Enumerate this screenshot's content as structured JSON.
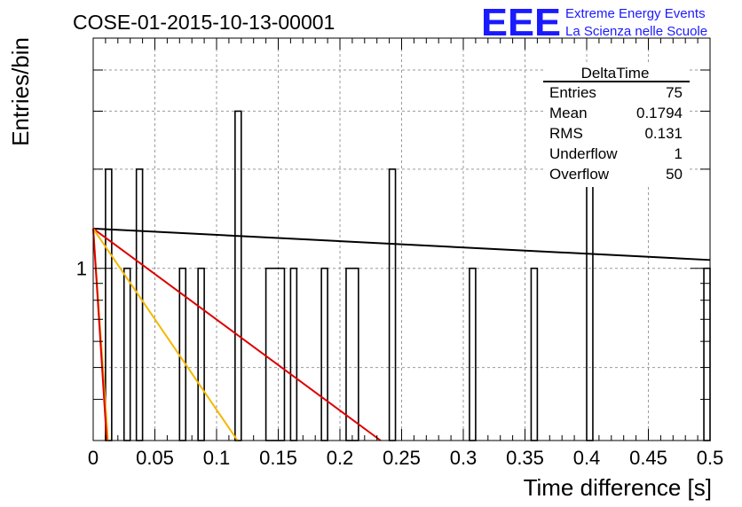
{
  "chart_data": {
    "type": "bar",
    "title": "COSE-01-2015-10-13-00001",
    "xlabel": "Time difference [s]",
    "ylabel": "Entries/bin",
    "xlim": [
      0,
      0.5
    ],
    "ylim": [
      0.3,
      5
    ],
    "y_scale": "log",
    "grid": true,
    "x_ticks": [
      "0",
      "0.05",
      "0.1",
      "0.15",
      "0.2",
      "0.25",
      "0.3",
      "0.35",
      "0.4",
      "0.45",
      "0.5"
    ],
    "x_tick_values": [
      0,
      0.05,
      0.1,
      0.15,
      0.2,
      0.25,
      0.3,
      0.35,
      0.4,
      0.45,
      0.5
    ],
    "y_ticks": [
      "1"
    ],
    "y_tick_values": [
      1
    ],
    "bins": [
      {
        "x0": 0.01,
        "x1": 0.015,
        "value": 2
      },
      {
        "x0": 0.025,
        "x1": 0.03,
        "value": 1
      },
      {
        "x0": 0.035,
        "x1": 0.04,
        "value": 2
      },
      {
        "x0": 0.07,
        "x1": 0.075,
        "value": 1
      },
      {
        "x0": 0.085,
        "x1": 0.09,
        "value": 1
      },
      {
        "x0": 0.115,
        "x1": 0.12,
        "value": 3
      },
      {
        "x0": 0.14,
        "x1": 0.155,
        "value": 1
      },
      {
        "x0": 0.16,
        "x1": 0.165,
        "value": 1
      },
      {
        "x0": 0.185,
        "x1": 0.19,
        "value": 1
      },
      {
        "x0": 0.205,
        "x1": 0.215,
        "value": 1
      },
      {
        "x0": 0.24,
        "x1": 0.245,
        "value": 2
      },
      {
        "x0": 0.305,
        "x1": 0.31,
        "value": 1
      },
      {
        "x0": 0.355,
        "x1": 0.36,
        "value": 1
      },
      {
        "x0": 0.4,
        "x1": 0.405,
        "value": 2
      },
      {
        "x0": 0.495,
        "x1": 0.5,
        "value": 1
      }
    ],
    "fit_lines": [
      {
        "color": "#000000",
        "x": [
          0,
          0.5
        ],
        "y": [
          1.32,
          1.06
        ]
      },
      {
        "color": "#dd0000",
        "x": [
          0,
          0.233
        ],
        "y": [
          1.32,
          0.3
        ]
      },
      {
        "color": "#f5b800",
        "x": [
          0,
          0.117
        ],
        "y": [
          1.32,
          0.3
        ]
      },
      {
        "color": "#f5b800",
        "x": [
          0,
          0.012
        ],
        "y": [
          1.32,
          0.3
        ]
      },
      {
        "color": "#dd0000",
        "x": [
          0,
          0.011
        ],
        "y": [
          1.32,
          0.3
        ]
      }
    ],
    "stats": {
      "name": "DeltaTime",
      "rows": [
        {
          "label": "Entries",
          "value": "75"
        },
        {
          "label": "Mean",
          "value": "0.1794"
        },
        {
          "label": "RMS",
          "value": "0.131"
        },
        {
          "label": "Underflow",
          "value": "1"
        },
        {
          "label": "Overflow",
          "value": "50"
        }
      ]
    }
  },
  "logo": {
    "text": "EEE",
    "line1": "Extreme Energy Events",
    "line2": "La Scienza nelle Scuole",
    "color": "#1a1aff"
  }
}
